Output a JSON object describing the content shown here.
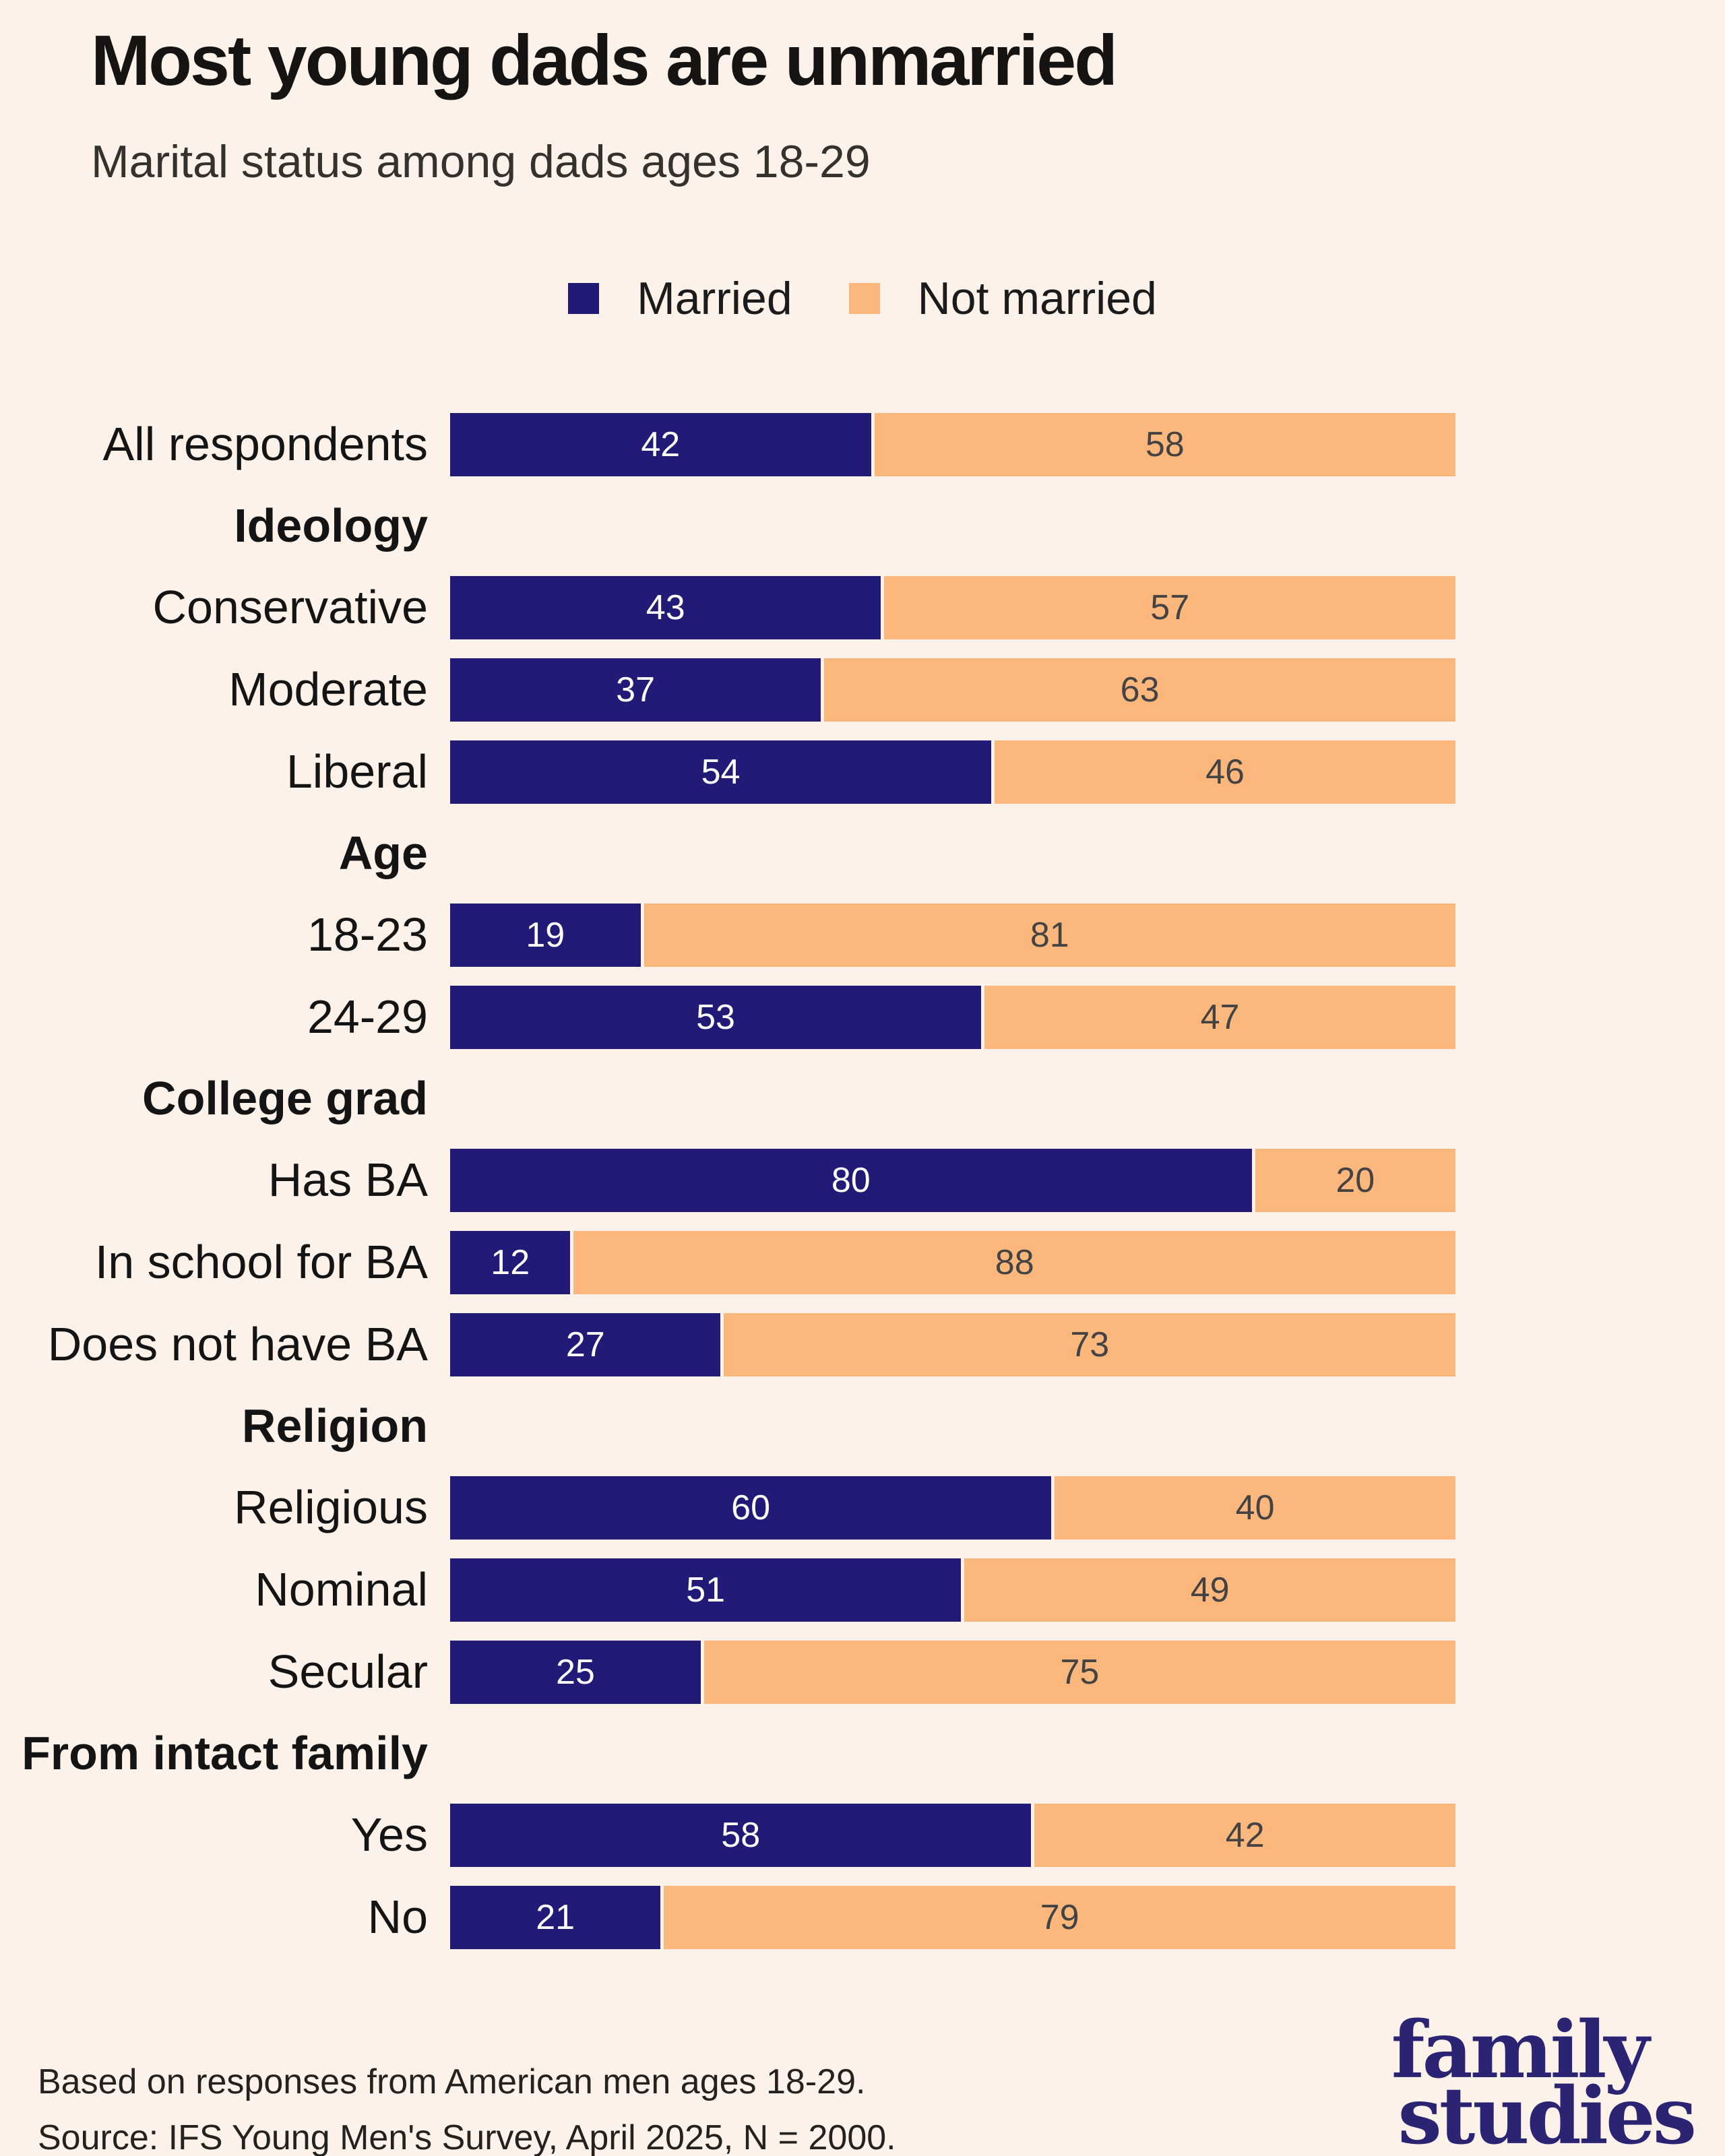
{
  "page": {
    "background": "#fdf2ea",
    "title": "Most young dads are unmarried",
    "subtitle": "Marital status among dads ages 18-29"
  },
  "legend": [
    {
      "label": "Married",
      "color": "#211a76"
    },
    {
      "label": "Not married",
      "color": "#fcb77c"
    }
  ],
  "chart_data": {
    "type": "bar",
    "variant": "stacked-horizontal",
    "value_unit": "percent",
    "xlim": [
      0,
      100
    ],
    "grid": false,
    "legend_position": "top-center",
    "title": "Most young dads are unmarried",
    "subtitle": "Marital status among dads ages 18-29",
    "series": [
      "Married",
      "Not married"
    ],
    "colors": {
      "Married": "#211a76",
      "Not married": "#fcb77c"
    },
    "value_label_colors": {
      "Married": "#ffffff",
      "Not married": "#434343"
    },
    "rows": [
      {
        "kind": "bar",
        "label": "All respondents",
        "values": {
          "Married": 42,
          "Not married": 58
        }
      },
      {
        "kind": "header",
        "label": "Ideology"
      },
      {
        "kind": "bar",
        "label": "Conservative",
        "values": {
          "Married": 43,
          "Not married": 57
        }
      },
      {
        "kind": "bar",
        "label": "Moderate",
        "values": {
          "Married": 37,
          "Not married": 63
        }
      },
      {
        "kind": "bar",
        "label": "Liberal",
        "values": {
          "Married": 54,
          "Not married": 46
        }
      },
      {
        "kind": "header",
        "label": "Age"
      },
      {
        "kind": "bar",
        "label": "18-23",
        "values": {
          "Married": 19,
          "Not married": 81
        }
      },
      {
        "kind": "bar",
        "label": "24-29",
        "values": {
          "Married": 53,
          "Not married": 47
        }
      },
      {
        "kind": "header",
        "label": "College grad"
      },
      {
        "kind": "bar",
        "label": "Has BA",
        "values": {
          "Married": 80,
          "Not married": 20
        }
      },
      {
        "kind": "bar",
        "label": "In school for BA",
        "values": {
          "Married": 12,
          "Not married": 88
        }
      },
      {
        "kind": "bar",
        "label": "Does not have BA",
        "values": {
          "Married": 27,
          "Not married": 73
        }
      },
      {
        "kind": "header",
        "label": "Religion"
      },
      {
        "kind": "bar",
        "label": "Religious",
        "values": {
          "Married": 60,
          "Not married": 40
        }
      },
      {
        "kind": "bar",
        "label": "Nominal",
        "values": {
          "Married": 51,
          "Not married": 49
        }
      },
      {
        "kind": "bar",
        "label": "Secular",
        "values": {
          "Married": 25,
          "Not married": 75
        }
      },
      {
        "kind": "header",
        "label": "From intact family"
      },
      {
        "kind": "bar",
        "label": "Yes",
        "values": {
          "Married": 58,
          "Not married": 42
        }
      },
      {
        "kind": "bar",
        "label": "No",
        "values": {
          "Married": 21,
          "Not married": 79
        }
      }
    ]
  },
  "footer": {
    "line1": "Based on responses from American men ages 18-29.",
    "line2": "Source: IFS Young Men's Survey, April 2025, N = 2000."
  },
  "logo": {
    "line1": "family",
    "line2": "studies",
    "color": "#2a2473"
  }
}
